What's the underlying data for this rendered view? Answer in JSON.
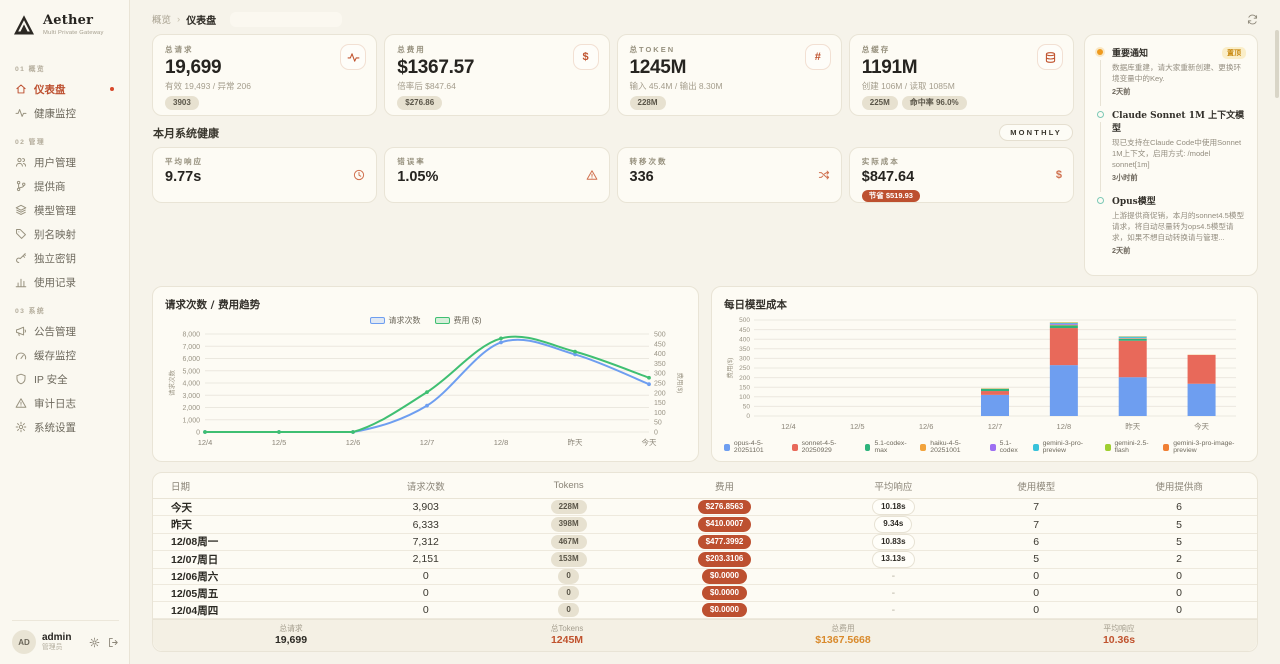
{
  "brand": {
    "name": "Aether",
    "subtitle": "Multi Private Gateway"
  },
  "sidebar": {
    "sections": [
      {
        "label": "01 概览",
        "items": [
          {
            "label": "仪表盘",
            "icon": "home",
            "active": true,
            "dot": true
          },
          {
            "label": "健康监控",
            "icon": "pulse"
          }
        ]
      },
      {
        "label": "02 管理",
        "items": [
          {
            "label": "用户管理",
            "icon": "users"
          },
          {
            "label": "提供商",
            "icon": "branch"
          },
          {
            "label": "模型管理",
            "icon": "layers"
          },
          {
            "label": "别名映射",
            "icon": "tag"
          },
          {
            "label": "独立密钥",
            "icon": "key"
          },
          {
            "label": "使用记录",
            "icon": "chart"
          }
        ]
      },
      {
        "label": "03 系统",
        "items": [
          {
            "label": "公告管理",
            "icon": "megaphone"
          },
          {
            "label": "缓存监控",
            "icon": "gauge"
          },
          {
            "label": "IP 安全",
            "icon": "shield"
          },
          {
            "label": "审计日志",
            "icon": "alert"
          },
          {
            "label": "系统设置",
            "icon": "gear"
          }
        ]
      }
    ],
    "user": {
      "initials": "AD",
      "name": "admin",
      "role": "管理员"
    }
  },
  "header": {
    "breadcrumb_root": "概览",
    "breadcrumb_sep": "›",
    "breadcrumb_current": "仪表盘"
  },
  "stat_cards": [
    {
      "label": "总请求",
      "value": "19,699",
      "sub": "有效 19,493 / 异常 206",
      "icon": "pulse",
      "badges": [
        "3903"
      ]
    },
    {
      "label": "总费用",
      "value": "$1367.57",
      "sub": "倍率后 $847.64",
      "icon": "dollar",
      "badges": [
        "$276.86"
      ]
    },
    {
      "label": "总TOKEN",
      "value": "1245M",
      "sub": "输入 45.4M / 输出 8.30M",
      "icon": "hash",
      "badges": [
        "228M"
      ]
    },
    {
      "label": "总缓存",
      "value": "1191M",
      "sub": "创建 106M / 读取 1085M",
      "icon": "database",
      "badges": [
        "225M",
        "命中率 96.0%"
      ]
    }
  ],
  "health": {
    "title": "本月系统健康",
    "tag": "MONTHLY",
    "cards": [
      {
        "label": "平均响应",
        "value": "9.77s",
        "icon": "clock"
      },
      {
        "label": "错误率",
        "value": "1.05%",
        "icon": "alert"
      },
      {
        "label": "转移次数",
        "value": "336",
        "icon": "shuffle"
      },
      {
        "label": "实际成本",
        "value": "$847.64",
        "icon": "dollar",
        "badge": "节省 $519.93"
      }
    ]
  },
  "announcements": {
    "items": [
      {
        "title": "重要通知",
        "badge": "置顶",
        "dot": "orange",
        "body": "数据库重建，请大家重新创建、更换环境变量中的Key.",
        "time": "2天前"
      },
      {
        "title": "Claude Sonnet 1M 上下文模型",
        "dot": "teal",
        "body": "现已支持在Claude Code中使用Sonnet 1M上下文，启用方式: /model sonnet[1m]",
        "time": "3小时前"
      },
      {
        "title": "Opus模型",
        "dot": "teal",
        "body": "上游提供商促销，本月的sonnet4.5模型请求，将自动尽量转为ops4.5模型请求，如果不想自动转换请与管理...",
        "time": "2天前"
      }
    ]
  },
  "chart_data": [
    {
      "type": "line",
      "title": "请求次数 / 费用趋势",
      "x": [
        "12/4",
        "12/5",
        "12/6",
        "12/7",
        "12/8",
        "昨天",
        "今天"
      ],
      "left_axis": {
        "label": "请求次数",
        "max": 8000,
        "step": 1000
      },
      "right_axis": {
        "label": "费用($)",
        "max": 500,
        "step": 50
      },
      "legend_position": "top",
      "grid": true,
      "series": [
        {
          "name": "请求次数",
          "color": "#6e9ef0",
          "axis": "left",
          "values": [
            0,
            0,
            0,
            2151,
            7312,
            6333,
            3903
          ]
        },
        {
          "name": "费用 ($)",
          "color": "#3fbf72",
          "axis": "right",
          "values": [
            0,
            0,
            0,
            203.31,
            477.4,
            410.0,
            276.86
          ]
        }
      ]
    },
    {
      "type": "stacked-bar",
      "title": "每日模型成本",
      "ylabel": "费用($)",
      "x": [
        "12/4",
        "12/5",
        "12/6",
        "12/7",
        "12/8",
        "昨天",
        "今天"
      ],
      "ylim": [
        0,
        500
      ],
      "step": 50,
      "legend_position": "bottom",
      "series": [
        {
          "name": "opus-4-5-20251101",
          "color": "#6e9ef0",
          "values": [
            0,
            0,
            0,
            110,
            265,
            202,
            168
          ]
        },
        {
          "name": "sonnet-4-5-20250929",
          "color": "#e8695a",
          "values": [
            0,
            0,
            0,
            20,
            193,
            190,
            150
          ]
        },
        {
          "name": "5.1-codex-max",
          "color": "#2eb47c",
          "values": [
            0,
            0,
            0,
            12,
            14,
            10,
            0
          ]
        },
        {
          "name": "haiku-4-5-20251001",
          "color": "#f2a33c",
          "values": [
            0,
            0,
            0,
            2,
            3,
            3,
            1
          ]
        },
        {
          "name": "5.1-codex",
          "color": "#9d6ff2",
          "values": [
            0,
            0,
            0,
            0,
            6,
            2,
            0
          ]
        },
        {
          "name": "gemini-3-pro-preview",
          "color": "#38c2da",
          "values": [
            0,
            0,
            0,
            0,
            4,
            6,
            0
          ]
        },
        {
          "name": "gemini-2.5-flash",
          "color": "#9fcf30",
          "values": [
            0,
            0,
            0,
            0,
            2,
            1,
            0
          ]
        },
        {
          "name": "gemini-3-pro-image-preview",
          "color": "#f07f34",
          "values": [
            0,
            0,
            0,
            0,
            1,
            1,
            0
          ]
        }
      ]
    }
  ],
  "table": {
    "headers": [
      "日期",
      "请求次数",
      "Tokens",
      "费用",
      "平均响应",
      "使用模型",
      "使用提供商"
    ],
    "rows": [
      {
        "date": "今天",
        "requests": "3,903",
        "tokens": "228M",
        "cost": "$276.8563",
        "response": "10.18s",
        "models": "7",
        "providers": "6"
      },
      {
        "date": "昨天",
        "requests": "6,333",
        "tokens": "398M",
        "cost": "$410.0007",
        "response": "9.34s",
        "models": "7",
        "providers": "5"
      },
      {
        "date": "12/08周一",
        "requests": "7,312",
        "tokens": "467M",
        "cost": "$477.3992",
        "response": "10.83s",
        "models": "6",
        "providers": "5"
      },
      {
        "date": "12/07周日",
        "requests": "2,151",
        "tokens": "153M",
        "cost": "$203.3106",
        "response": "13.13s",
        "models": "5",
        "providers": "2"
      },
      {
        "date": "12/06周六",
        "requests": "0",
        "tokens": "0",
        "cost": "$0.0000",
        "response": "-",
        "models": "0",
        "providers": "0"
      },
      {
        "date": "12/05周五",
        "requests": "0",
        "tokens": "0",
        "cost": "$0.0000",
        "response": "-",
        "models": "0",
        "providers": "0"
      },
      {
        "date": "12/04周四",
        "requests": "0",
        "tokens": "0",
        "cost": "$0.0000",
        "response": "-",
        "models": "0",
        "providers": "0"
      }
    ],
    "footer": [
      {
        "label": "总请求",
        "value": "19,699",
        "tone": "dark"
      },
      {
        "label": "总Tokens",
        "value": "1245M",
        "tone": "red"
      },
      {
        "label": "总费用",
        "value": "$1367.5668",
        "tone": "orange"
      },
      {
        "label": "平均响应",
        "value": "10.36s",
        "tone": "red"
      }
    ]
  }
}
